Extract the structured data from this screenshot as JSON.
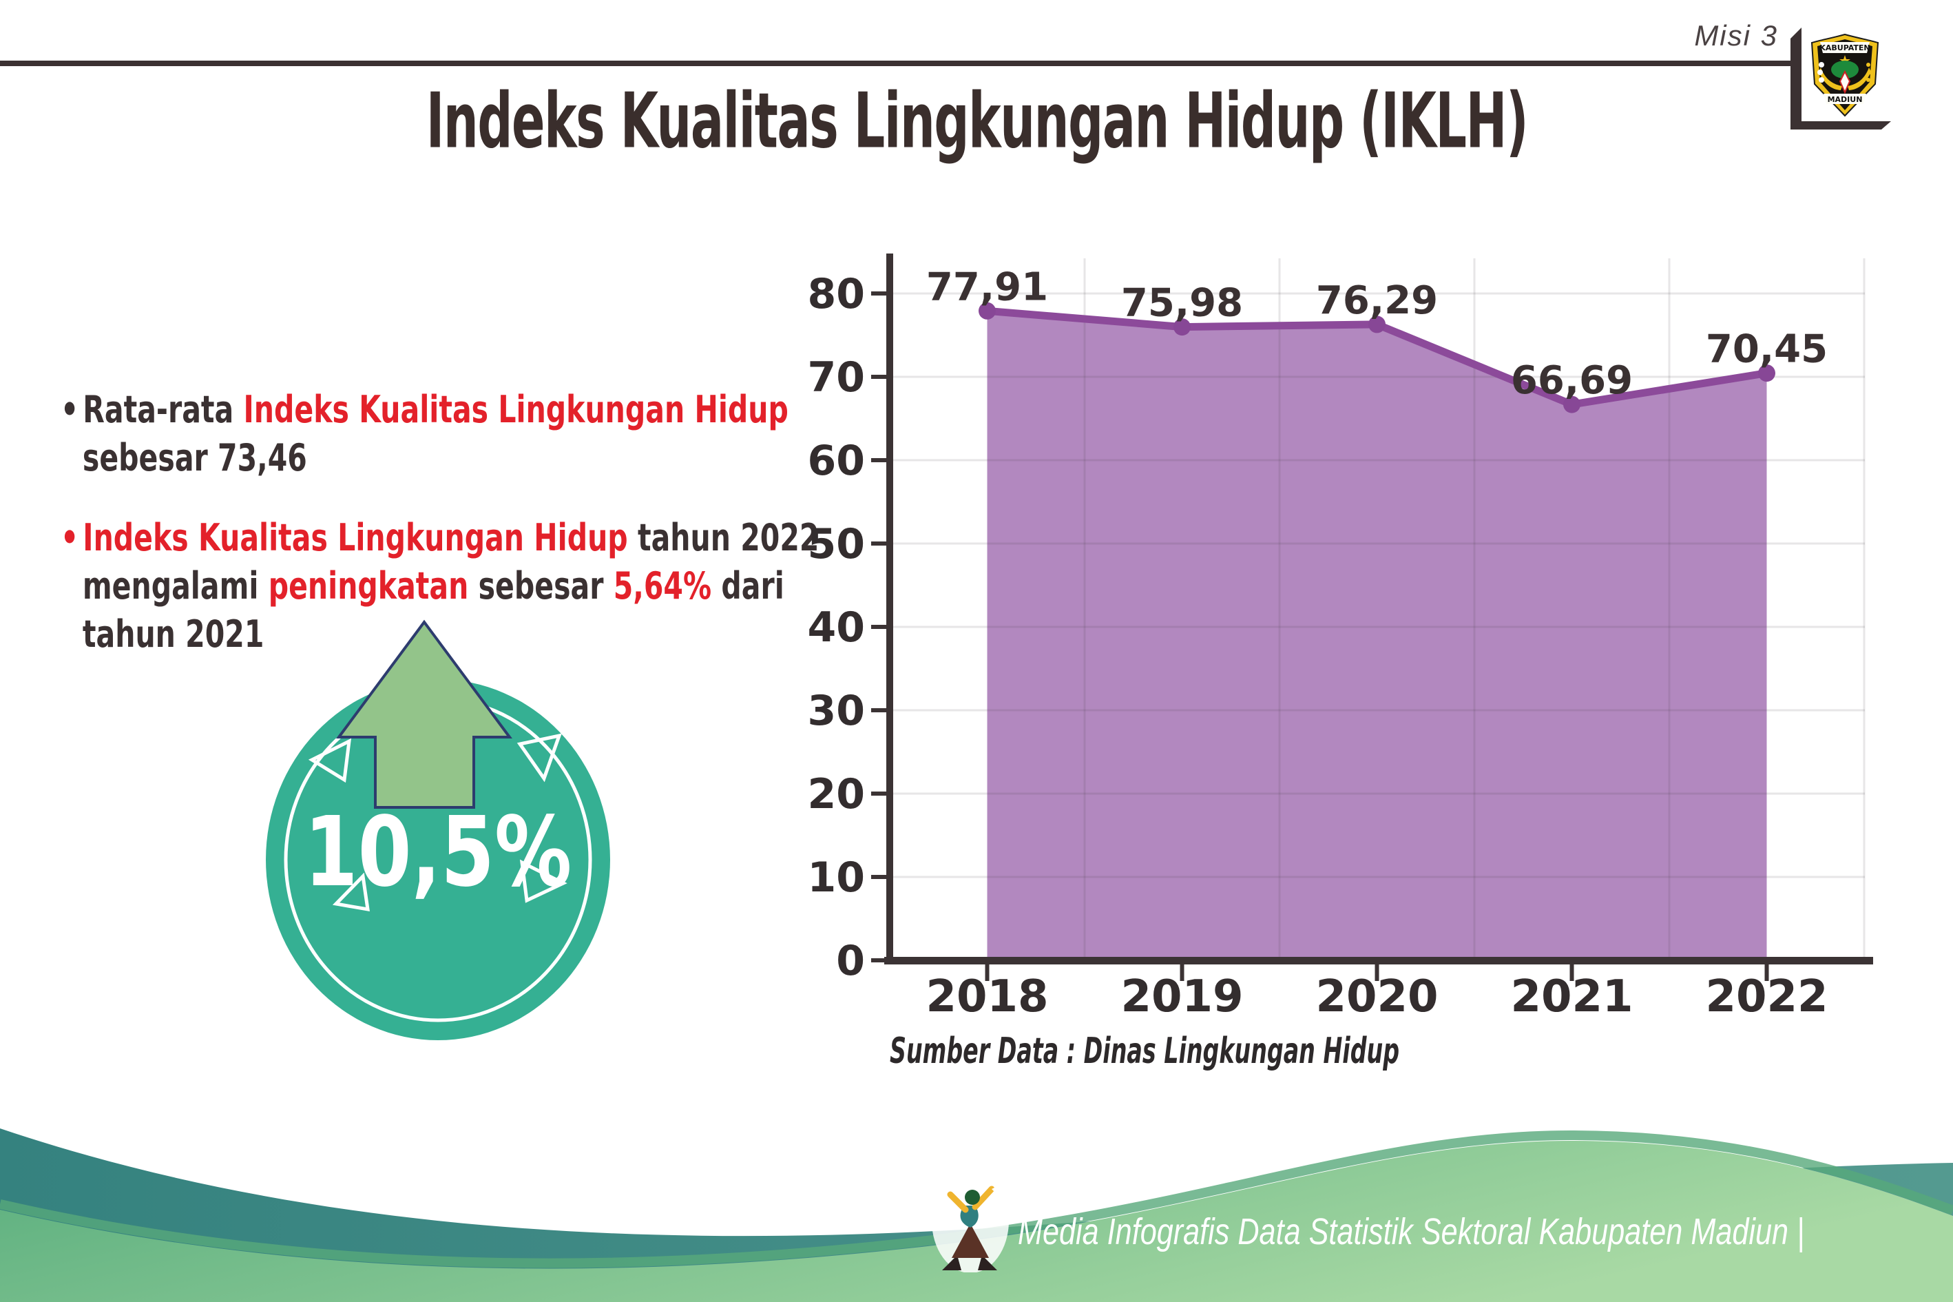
{
  "header": {
    "tag": "Misi 3",
    "title": "Indeks Kualitas Lingkungan Hidup (IKLH)"
  },
  "logo": {
    "top_banner": "KABUPATEN",
    "bottom_banner": "MADIUN"
  },
  "bullets": {
    "marker": "•",
    "items": [
      {
        "marker_red": false,
        "lines": [
          [
            {
              "text": "Rata-rata ",
              "red": false
            },
            {
              "text": "Indeks Kualitas Lingkungan Hidup",
              "red": true
            }
          ],
          [
            {
              "text": "sebesar 73,46",
              "red": false
            }
          ]
        ]
      },
      {
        "marker_red": true,
        "lines": [
          [
            {
              "text": "Indeks Kualitas Lingkungan Hidup",
              "red": true
            },
            {
              "text": " tahun 2022",
              "red": false
            }
          ],
          [
            {
              "text": "mengalami ",
              "red": false
            },
            {
              "text": "peningkatan",
              "red": true
            },
            {
              "text": " sebesar ",
              "red": false
            },
            {
              "text": "5,64%",
              "red": true
            },
            {
              "text": " dari",
              "red": false
            }
          ],
          [
            {
              "text": "tahun 2021",
              "red": false
            }
          ]
        ]
      }
    ]
  },
  "badge": {
    "value": "10,5%",
    "arrow": "up"
  },
  "chart_data": {
    "type": "area",
    "series_name": "IKLH",
    "categories": [
      "2018",
      "2019",
      "2020",
      "2021",
      "2022"
    ],
    "values": [
      77.91,
      75.98,
      76.29,
      66.69,
      70.45
    ],
    "value_labels": [
      "77,91",
      "75,98",
      "76,29",
      "66,69",
      "70,45"
    ],
    "title": "",
    "xlabel": "",
    "ylabel": "",
    "ylim": [
      0,
      80
    ],
    "ytick_step": 10,
    "grid": true,
    "legend": "none"
  },
  "source_text": "Sumber Data : Dinas Lingkungan Hidup",
  "footer": {
    "brand_text": "Media Infografis Data Statistik Sektoral Kabupaten Madiun |"
  },
  "colors": {
    "accent_red": "#e3212a",
    "dark_text": "#3a3132",
    "axis": "#3b3334",
    "tick_label": "#332d2e",
    "chart_fill": "#b288bf",
    "chart_line": "#8c4a9a",
    "chart_marker": "#874796",
    "badge_teal": "#35b093",
    "arrow_green": "#93c48a",
    "arrow_outline": "#2d3c6e",
    "wave_teal_1": "#35827f",
    "wave_teal_2": "#549a90",
    "wave_green_1": "#58ad7d",
    "wave_green_2": "#a8d9a4",
    "logo_gold": "#efc11c",
    "logo_green": "#1d8a3b"
  }
}
